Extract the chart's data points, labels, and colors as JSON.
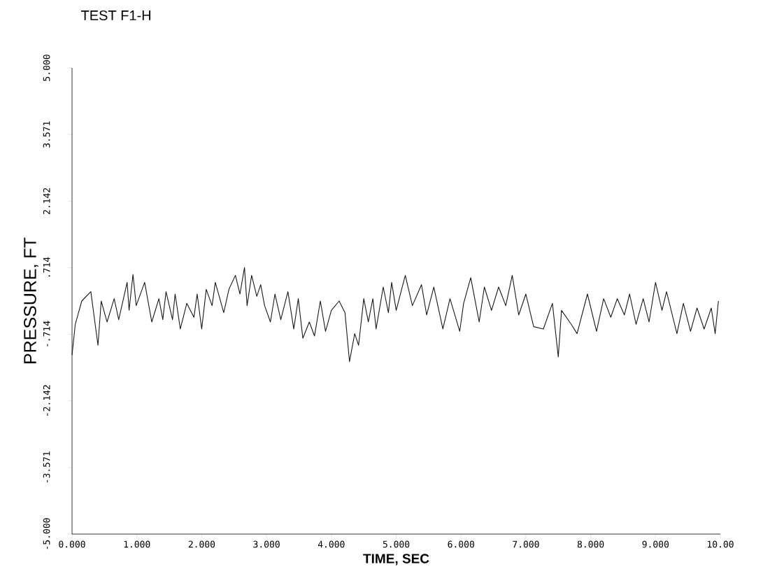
{
  "chart_data": {
    "type": "line",
    "title": "TEST F1-H",
    "xlabel": "TIME, SEC",
    "ylabel": "PRESSURE, FT",
    "color": "#1a1a1a",
    "xlim": [
      0,
      10
    ],
    "ylim": [
      -5,
      5
    ],
    "xticks": [
      {
        "value": 0,
        "label": "0.000"
      },
      {
        "value": 1,
        "label": "1.000"
      },
      {
        "value": 2,
        "label": "2.000"
      },
      {
        "value": 3,
        "label": "3.000"
      },
      {
        "value": 4,
        "label": "4.000"
      },
      {
        "value": 5,
        "label": "5.000"
      },
      {
        "value": 6,
        "label": "6.000"
      },
      {
        "value": 7,
        "label": "7.000"
      },
      {
        "value": 8,
        "label": "8.000"
      },
      {
        "value": 9,
        "label": "9.000"
      },
      {
        "value": 10,
        "label": "10.00"
      }
    ],
    "yticks": [
      {
        "value": -5,
        "label": "-5.000"
      },
      {
        "value": -3.571,
        "label": "-3.571"
      },
      {
        "value": -2.142,
        "label": "-2.142"
      },
      {
        "value": -0.714,
        "label": "-.714"
      },
      {
        "value": 0.714,
        "label": ".714"
      },
      {
        "value": 2.142,
        "label": "2.142"
      },
      {
        "value": 3.571,
        "label": "3.571"
      },
      {
        "value": 5,
        "label": "5.000"
      }
    ],
    "x": [
      0.0,
      0.05,
      0.15,
      0.29,
      0.4,
      0.45,
      0.54,
      0.65,
      0.72,
      0.85,
      0.88,
      0.94,
      0.99,
      1.12,
      1.23,
      1.34,
      1.4,
      1.45,
      1.55,
      1.59,
      1.67,
      1.77,
      1.88,
      1.93,
      2.0,
      2.07,
      2.16,
      2.21,
      2.34,
      2.42,
      2.52,
      2.59,
      2.66,
      2.7,
      2.77,
      2.85,
      2.91,
      2.97,
      3.06,
      3.13,
      3.22,
      3.33,
      3.42,
      3.49,
      3.56,
      3.66,
      3.74,
      3.83,
      3.91,
      4.0,
      4.12,
      4.21,
      4.28,
      4.36,
      4.42,
      4.5,
      4.57,
      4.64,
      4.69,
      4.8,
      4.88,
      4.93,
      5.0,
      5.14,
      5.25,
      5.39,
      5.47,
      5.58,
      5.72,
      5.83,
      5.98,
      6.04,
      6.15,
      6.28,
      6.36,
      6.47,
      6.58,
      6.69,
      6.79,
      6.89,
      7.0,
      7.12,
      7.27,
      7.41,
      7.5,
      7.55,
      7.7,
      7.79,
      7.95,
      8.09,
      8.2,
      8.31,
      8.41,
      8.52,
      8.6,
      8.7,
      8.81,
      8.9,
      9.0,
      9.1,
      9.17,
      9.33,
      9.43,
      9.54,
      9.64,
      9.75,
      9.86,
      9.92,
      9.97
    ],
    "values": [
      -1.16,
      -0.5,
      0.0,
      0.2,
      -0.95,
      0.0,
      -0.45,
      0.05,
      -0.4,
      0.4,
      -0.2,
      0.57,
      -0.1,
      0.4,
      -0.45,
      0.05,
      -0.4,
      0.2,
      -0.4,
      0.15,
      -0.6,
      -0.05,
      -0.35,
      0.15,
      -0.6,
      0.25,
      -0.1,
      0.4,
      -0.25,
      0.25,
      0.55,
      0.15,
      0.72,
      -0.1,
      0.55,
      0.1,
      0.35,
      -0.1,
      -0.45,
      0.15,
      -0.4,
      0.2,
      -0.6,
      0.05,
      -0.8,
      -0.45,
      -0.75,
      0.0,
      -0.65,
      -0.2,
      0.0,
      -0.25,
      -1.3,
      -0.7,
      -0.95,
      0.05,
      -0.45,
      0.05,
      -0.6,
      0.3,
      -0.25,
      0.4,
      -0.2,
      0.55,
      -0.1,
      0.35,
      -0.3,
      0.3,
      -0.6,
      0.05,
      -0.65,
      -0.05,
      0.5,
      -0.45,
      0.3,
      -0.2,
      0.3,
      -0.1,
      0.55,
      -0.3,
      0.15,
      -0.55,
      -0.6,
      -0.05,
      -1.2,
      -0.2,
      -0.5,
      -0.7,
      0.15,
      -0.65,
      0.05,
      -0.35,
      0.05,
      -0.3,
      0.15,
      -0.5,
      0.05,
      -0.45,
      0.4,
      -0.2,
      0.2,
      -0.7,
      -0.05,
      -0.65,
      -0.15,
      -0.6,
      -0.15,
      -0.7,
      0.0
    ]
  }
}
